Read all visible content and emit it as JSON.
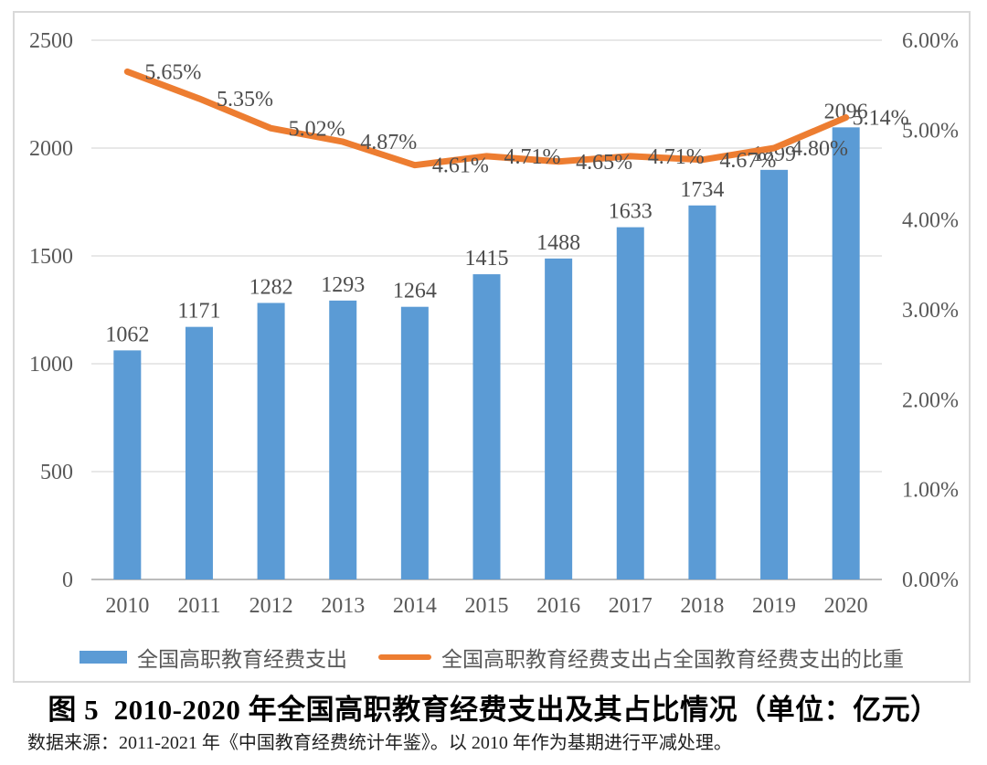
{
  "title": "图 5  2010-2020 年全国高职教育经费支出及其占比情况（单位：亿元）",
  "source": "数据来源：2011-2021 年《中国教育经费统计年鉴》。以 2010 年作为基期进行平减处理。",
  "colors": {
    "bar": "#5B9BD5",
    "line": "#ED7D31",
    "gridline": "#d9d9d9",
    "axis_line": "#a6a6a6",
    "tick_label": "#595959",
    "data_label": "#4d4d4d",
    "frame_border": "#d9d9d9"
  },
  "chart_data": {
    "type": "bar",
    "subtype": "combo-bar-line-dual-axis",
    "categories": [
      "2010",
      "2011",
      "2012",
      "2013",
      "2014",
      "2015",
      "2016",
      "2017",
      "2018",
      "2019",
      "2020"
    ],
    "series": [
      {
        "name": "全国高职教育经费支出",
        "type": "bar",
        "axis": "left",
        "color": "#5B9BD5",
        "values": [
          1062,
          1171,
          1282,
          1293,
          1264,
          1415,
          1488,
          1633,
          1734,
          1899,
          2096
        ]
      },
      {
        "name": "全国高职教育经费支出占全国教育经费支出的比重",
        "type": "line",
        "axis": "right",
        "color": "#ED7D31",
        "values": [
          5.65,
          5.35,
          5.02,
          4.87,
          4.61,
          4.71,
          4.65,
          4.71,
          4.67,
          4.8,
          5.14
        ],
        "labels": [
          "5.65%",
          "5.35%",
          "5.02%",
          "4.87%",
          "4.61%",
          "4.71%",
          "4.65%",
          "4.71%",
          "4.67%",
          "4.80%",
          "5.14%"
        ]
      }
    ],
    "left_axis": {
      "min": 0,
      "max": 2500,
      "step": 500,
      "tick_values": [
        0,
        500,
        1000,
        1500,
        2000,
        2500
      ],
      "tick_labels": [
        "0",
        "500",
        "1000",
        "1500",
        "2000",
        "2500"
      ]
    },
    "right_axis": {
      "min": 0,
      "max": 6,
      "step": 1,
      "tick_values": [
        0,
        1,
        2,
        3,
        4,
        5,
        6
      ],
      "tick_labels": [
        "0.00%",
        "1.00%",
        "2.00%",
        "3.00%",
        "4.00%",
        "5.00%",
        "6.00%"
      ]
    },
    "grid": true,
    "legend_position": "bottom"
  }
}
